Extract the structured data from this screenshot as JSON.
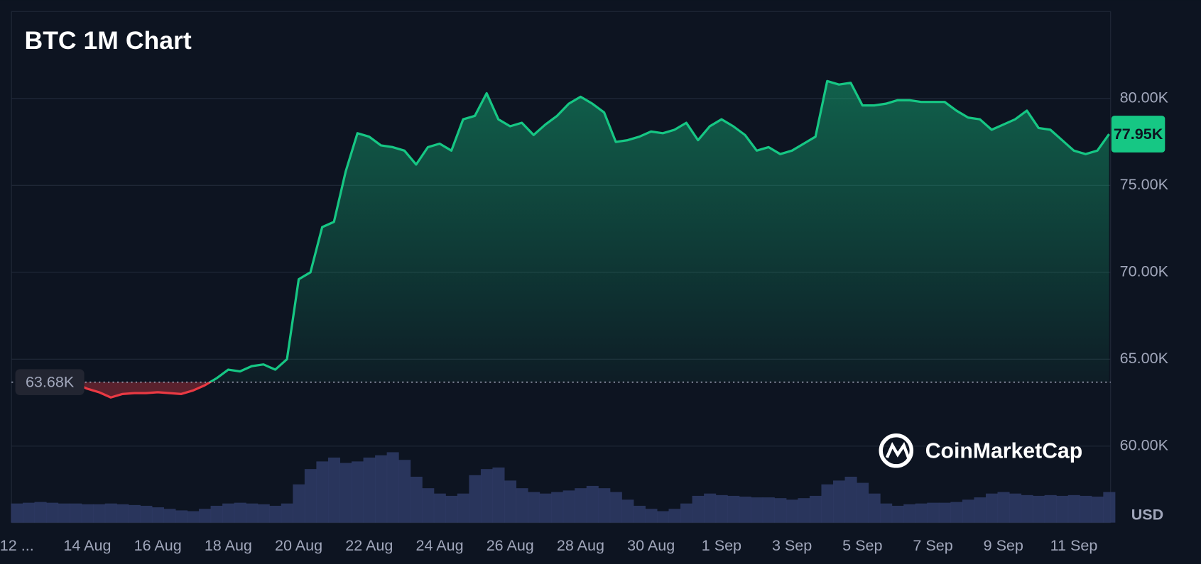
{
  "chart_data": {
    "type": "line",
    "title": "BTC 1M Chart",
    "categories": [
      "12 ...",
      null,
      null,
      null,
      null,
      null,
      "14 Aug",
      null,
      null,
      null,
      null,
      null,
      "16 Aug",
      null,
      null,
      null,
      null,
      null,
      "18 Aug",
      null,
      null,
      null,
      null,
      null,
      "20 Aug",
      null,
      null,
      null,
      null,
      null,
      "22 Aug",
      null,
      null,
      null,
      null,
      null,
      "24 Aug",
      null,
      null,
      null,
      null,
      null,
      "26 Aug",
      null,
      null,
      null,
      null,
      null,
      "28 Aug",
      null,
      null,
      null,
      null,
      null,
      "30 Aug",
      null,
      null,
      null,
      null,
      null,
      "1 Sep",
      null,
      null,
      null,
      null,
      null,
      "3 Sep",
      null,
      null,
      null,
      null,
      null,
      "5 Sep",
      null,
      null,
      null,
      null,
      null,
      "7 Sep",
      null,
      null,
      null,
      null,
      null,
      "9 Sep",
      null,
      null,
      null,
      null,
      null,
      "11 Sep",
      null,
      null,
      null
    ],
    "values": [
      63600,
      63500,
      63550,
      63500,
      63600,
      63600,
      63300,
      63100,
      62800,
      63000,
      63050,
      63050,
      63100,
      63050,
      63000,
      63200,
      63500,
      63900,
      64400,
      64300,
      64600,
      64700,
      64400,
      65000,
      69600,
      70000,
      72600,
      72900,
      75800,
      78000,
      77800,
      77300,
      77200,
      77000,
      76200,
      77200,
      77400,
      77000,
      78800,
      79000,
      80300,
      78800,
      78400,
      78600,
      77900,
      78500,
      79000,
      79700,
      80100,
      79700,
      79200,
      77500,
      77600,
      77800,
      78100,
      78000,
      78200,
      78600,
      77600,
      78400,
      78800,
      78400,
      77900,
      77000,
      77200,
      76800,
      77000,
      77400,
      77800,
      81000,
      80800,
      80900,
      79600,
      79600,
      79700,
      79900,
      79900,
      79800,
      79800,
      79800,
      79300,
      78900,
      78800,
      78200,
      78500,
      78800,
      79300,
      78300,
      78200,
      77600,
      77000,
      76800,
      77000,
      77950
    ],
    "volume": [
      25,
      26,
      27,
      26,
      25,
      25,
      24,
      24,
      25,
      24,
      23,
      22,
      20,
      18,
      16,
      15,
      18,
      22,
      25,
      26,
      25,
      24,
      22,
      25,
      50,
      70,
      80,
      85,
      78,
      80,
      85,
      88,
      92,
      82,
      60,
      45,
      38,
      35,
      38,
      62,
      70,
      72,
      55,
      45,
      40,
      38,
      40,
      42,
      45,
      48,
      45,
      40,
      30,
      22,
      18,
      15,
      18,
      25,
      35,
      38,
      36,
      35,
      34,
      33,
      33,
      32,
      30,
      32,
      35,
      50,
      55,
      60,
      52,
      38,
      25,
      22,
      24,
      25,
      26,
      26,
      27,
      30,
      33,
      38,
      40,
      38,
      36,
      35,
      36,
      35,
      36,
      35,
      34,
      40
    ],
    "up_color": "#16c784",
    "down_color": "#ea3943",
    "volume_color": "#2f3b66",
    "baseline": {
      "value": 63680,
      "label": "63.68K"
    },
    "last_price": {
      "value": 77950,
      "label": "77.95K"
    },
    "ylim": [
      55600,
      85000
    ],
    "yticks": [
      {
        "value": 60000,
        "label": "60.00K"
      },
      {
        "value": 65000,
        "label": "65.00K"
      },
      {
        "value": 70000,
        "label": "70.00K"
      },
      {
        "value": 75000,
        "label": "75.00K"
      },
      {
        "value": 80000,
        "label": "80.00K"
      }
    ],
    "grid": true,
    "currency_label": "USD",
    "watermark": "CoinMarketCap"
  }
}
